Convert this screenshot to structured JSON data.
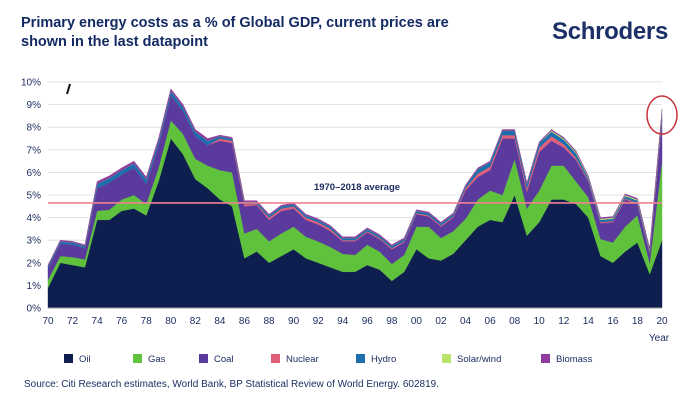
{
  "title": "Primary energy costs as a % of Global GDP, current prices are shown in the last datapoint",
  "brand": "Schroders",
  "source": "Source: Citi Research estimates, World Bank, BP Statistical Review of World Energy. 602819.",
  "chart_data": {
    "type": "area",
    "stacked": true,
    "title": "Primary energy costs as a % of Global GDP, current prices are shown in the last datapoint",
    "xlabel": "Year",
    "ylabel": "",
    "ylim": [
      0,
      10
    ],
    "yticks": [
      "0%",
      "1%",
      "2%",
      "3%",
      "4%",
      "5%",
      "6%",
      "7%",
      "8%",
      "9%",
      "10%"
    ],
    "xticks": [
      "70",
      "72",
      "74",
      "76",
      "78",
      "80",
      "82",
      "84",
      "86",
      "88",
      "90",
      "92",
      "94",
      "96",
      "98",
      "00",
      "02",
      "04",
      "06",
      "08",
      "10",
      "12",
      "14",
      "16",
      "18",
      "20"
    ],
    "x": [
      1970,
      1971,
      1972,
      1973,
      1974,
      1975,
      1976,
      1977,
      1978,
      1979,
      1980,
      1981,
      1982,
      1983,
      1984,
      1985,
      1986,
      1987,
      1988,
      1989,
      1990,
      1991,
      1992,
      1993,
      1994,
      1995,
      1996,
      1997,
      1998,
      1999,
      2000,
      2001,
      2002,
      2003,
      2004,
      2005,
      2006,
      2007,
      2008,
      2009,
      2010,
      2011,
      2012,
      2013,
      2014,
      2015,
      2016,
      2017,
      2018,
      2019,
      2020
    ],
    "grid": true,
    "average_line": {
      "label": "1970–2018 average",
      "value": 4.65,
      "color": "#f08090"
    },
    "series": [
      {
        "name": "Oil",
        "color": "#0e1f4f",
        "values": [
          0.9,
          2.0,
          1.9,
          1.8,
          3.9,
          3.9,
          4.3,
          4.4,
          4.1,
          5.6,
          7.5,
          6.8,
          5.7,
          5.3,
          4.8,
          4.5,
          2.2,
          2.5,
          2.0,
          2.3,
          2.6,
          2.2,
          2.0,
          1.8,
          1.6,
          1.6,
          1.9,
          1.7,
          1.2,
          1.6,
          2.6,
          2.2,
          2.1,
          2.4,
          3.0,
          3.6,
          3.9,
          3.8,
          5.0,
          3.2,
          3.8,
          4.8,
          4.8,
          4.6,
          4.0,
          2.3,
          2.0,
          2.5,
          2.9,
          1.5,
          3.0
        ]
      },
      {
        "name": "Gas",
        "color": "#5fc13c",
        "values": [
          0.35,
          0.3,
          0.35,
          0.35,
          0.4,
          0.45,
          0.5,
          0.6,
          0.5,
          0.6,
          0.8,
          0.9,
          0.9,
          1.0,
          1.3,
          1.5,
          1.1,
          1.0,
          0.95,
          1.0,
          1.0,
          0.95,
          0.95,
          0.9,
          0.8,
          0.75,
          0.9,
          0.8,
          0.75,
          0.75,
          1.0,
          1.4,
          1.0,
          1.0,
          0.95,
          1.2,
          1.3,
          1.2,
          1.6,
          1.2,
          1.4,
          1.5,
          1.5,
          1.0,
          0.9,
          0.75,
          0.9,
          1.1,
          1.2,
          0.5,
          3.5
        ]
      },
      {
        "name": "Coal",
        "color": "#5b3a9e",
        "values": [
          0.5,
          0.55,
          0.55,
          0.5,
          1.0,
          1.2,
          1.1,
          1.2,
          0.9,
          1.0,
          1.1,
          1.0,
          1.0,
          0.9,
          1.3,
          1.3,
          1.2,
          1.05,
          0.95,
          1.0,
          0.8,
          0.75,
          0.75,
          0.7,
          0.55,
          0.6,
          0.55,
          0.55,
          0.65,
          0.55,
          0.55,
          0.45,
          0.5,
          0.6,
          1.25,
          1.0,
          0.9,
          2.5,
          0.9,
          0.75,
          1.7,
          1.1,
          0.8,
          0.95,
          0.7,
          0.7,
          0.9,
          1.2,
          0.5,
          0.4,
          1.8
        ]
      },
      {
        "name": "Nuclear",
        "color": "#e0607a",
        "values": [
          0,
          0,
          0,
          0,
          0,
          0,
          0,
          0,
          0,
          0,
          0,
          0,
          0,
          0,
          0.1,
          0.1,
          0.1,
          0.05,
          0.1,
          0.1,
          0.1,
          0.1,
          0.1,
          0.1,
          0.05,
          0.05,
          0.05,
          0.05,
          0.05,
          0.05,
          0.05,
          0.05,
          0.05,
          0.05,
          0.1,
          0.15,
          0.15,
          0.15,
          0.15,
          0.15,
          0.2,
          0.2,
          0.15,
          0.1,
          0.05,
          0.05,
          0.05,
          0.05,
          0.05,
          0.05,
          0.1
        ]
      },
      {
        "name": "Hydro",
        "color": "#1b6fae",
        "values": [
          0.1,
          0.1,
          0.1,
          0.1,
          0.2,
          0.2,
          0.2,
          0.2,
          0.2,
          0.2,
          0.2,
          0.2,
          0.2,
          0.2,
          0.1,
          0.1,
          0.1,
          0.1,
          0.1,
          0.1,
          0.1,
          0.1,
          0.1,
          0.1,
          0.1,
          0.1,
          0.1,
          0.1,
          0.1,
          0.1,
          0.1,
          0.1,
          0.1,
          0.1,
          0.1,
          0.2,
          0.2,
          0.2,
          0.2,
          0.2,
          0.2,
          0.2,
          0.2,
          0.2,
          0.1,
          0.1,
          0.1,
          0.1,
          0.1,
          0.1,
          0.2
        ]
      },
      {
        "name": "Solar/wind",
        "color": "#b9e36a",
        "values": [
          0,
          0,
          0,
          0,
          0,
          0,
          0,
          0,
          0,
          0,
          0,
          0,
          0,
          0,
          0,
          0,
          0,
          0,
          0,
          0,
          0,
          0,
          0,
          0,
          0,
          0,
          0,
          0,
          0,
          0,
          0,
          0,
          0,
          0,
          0,
          0,
          0,
          0,
          0,
          0,
          0,
          0.05,
          0.05,
          0.05,
          0.05,
          0.05,
          0.05,
          0.05,
          0.05,
          0.05,
          0.1
        ]
      },
      {
        "name": "Biomass",
        "color": "#8e3c9e",
        "values": [
          0.05,
          0.05,
          0.05,
          0.05,
          0.1,
          0.1,
          0.1,
          0.1,
          0.1,
          0.1,
          0.1,
          0.1,
          0.1,
          0.1,
          0.05,
          0.05,
          0.05,
          0.05,
          0.05,
          0.05,
          0.05,
          0.05,
          0.05,
          0.05,
          0.05,
          0.05,
          0.05,
          0.05,
          0.05,
          0.05,
          0.05,
          0.05,
          0.05,
          0.05,
          0.05,
          0.05,
          0.05,
          0.05,
          0.05,
          0.05,
          0.05,
          0.05,
          0.05,
          0.05,
          0.05,
          0.05,
          0.05,
          0.05,
          0.05,
          0.05,
          0.1
        ]
      }
    ]
  }
}
